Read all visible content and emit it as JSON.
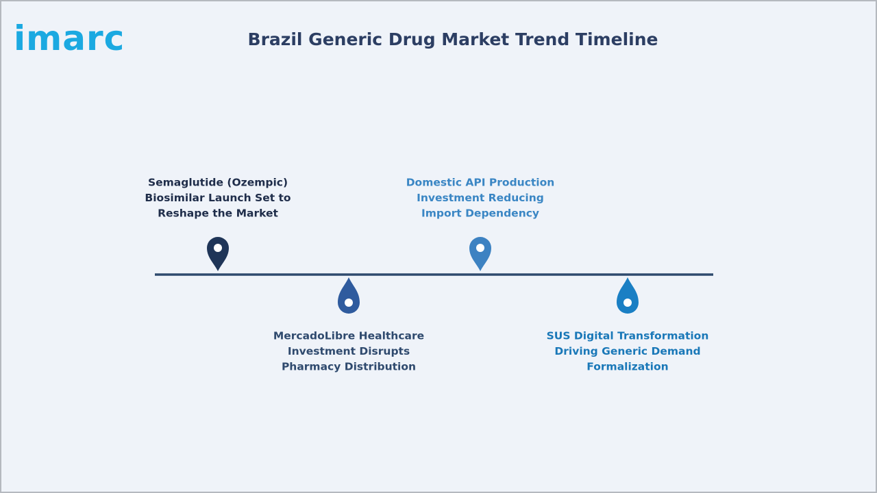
{
  "header": {
    "logo": "imarc",
    "title": "Brazil Generic Drug Market Trend Timeline"
  },
  "events": [
    {
      "lines": [
        "Semaglutide (Ozempic)",
        "Biosimilar Launch Set to",
        "Reshape the Market"
      ]
    },
    {
      "lines": [
        "MercadoLibre Healthcare",
        "Investment Disrupts",
        "Pharmacy Distribution"
      ]
    },
    {
      "lines": [
        "Domestic API Production",
        "Investment Reducing",
        "Import Dependency"
      ]
    },
    {
      "lines": [
        "SUS Digital Transformation",
        "Driving Generic Demand",
        "Formalization"
      ]
    }
  ]
}
